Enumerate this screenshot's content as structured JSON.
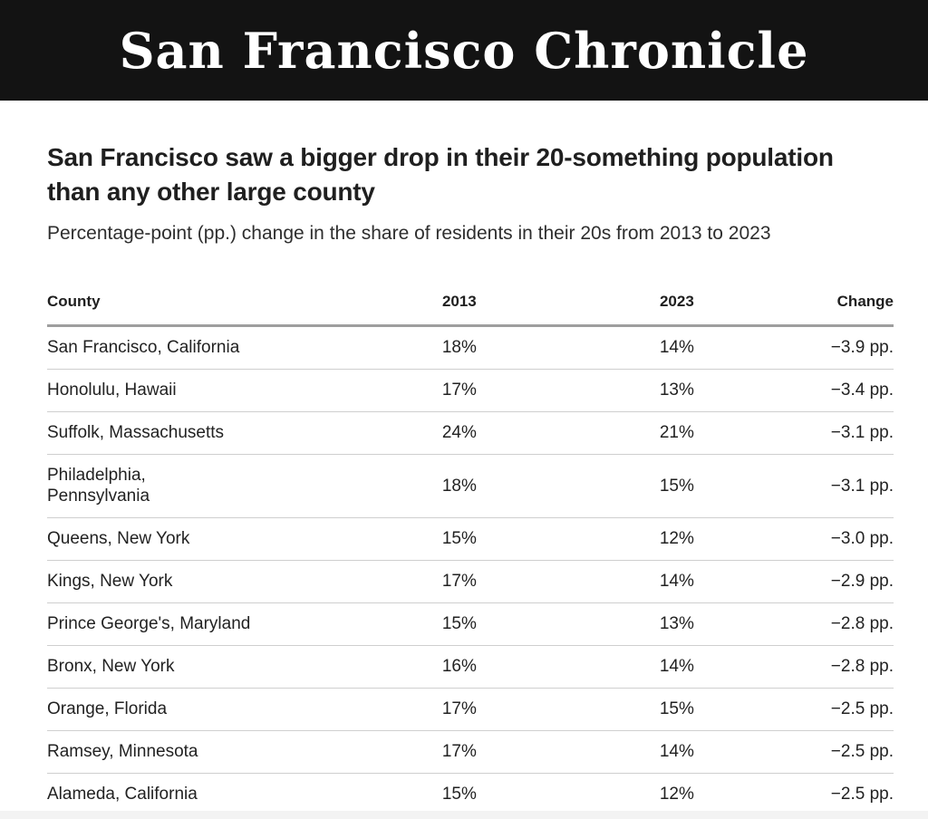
{
  "masthead": {
    "title": "San Francisco Chronicle"
  },
  "headline": "San Francisco saw a bigger drop in their 20-something population than any other large county",
  "subtitle": "Percentage-point (pp.) change in the share of residents in their 20s from 2013 to 2023",
  "table": {
    "columns": {
      "county": "County",
      "y2013": "2013",
      "y2023": "2023",
      "change": "Change"
    },
    "rows": [
      {
        "county": "San Francisco, California",
        "y2013": "18%",
        "y2023": "14%",
        "change": "−3.9 pp."
      },
      {
        "county": "Honolulu, Hawaii",
        "y2013": "17%",
        "y2023": "13%",
        "change": "−3.4 pp."
      },
      {
        "county": "Suffolk, Massachusetts",
        "y2013": "24%",
        "y2023": "21%",
        "change": "−3.1 pp."
      },
      {
        "county": "Philadelphia,\nPennsylvania",
        "y2013": "18%",
        "y2023": "15%",
        "change": "−3.1 pp."
      },
      {
        "county": "Queens, New York",
        "y2013": "15%",
        "y2023": "12%",
        "change": "−3.0 pp."
      },
      {
        "county": "Kings, New York",
        "y2013": "17%",
        "y2023": "14%",
        "change": "−2.9 pp."
      },
      {
        "county": "Prince George's, Maryland",
        "y2013": "15%",
        "y2023": "13%",
        "change": "−2.8 pp."
      },
      {
        "county": "Bronx, New York",
        "y2013": "16%",
        "y2023": "14%",
        "change": "−2.8 pp."
      },
      {
        "county": "Orange, Florida",
        "y2013": "17%",
        "y2023": "15%",
        "change": "−2.5 pp."
      },
      {
        "county": "Ramsey, Minnesota",
        "y2013": "17%",
        "y2023": "14%",
        "change": "−2.5 pp."
      },
      {
        "county": "Alameda, California",
        "y2013": "15%",
        "y2023": "12%",
        "change": "−2.5 pp."
      }
    ]
  },
  "colors": {
    "masthead_bg": "#131313",
    "masthead_fg": "#ffffff",
    "headline_text": "#1f1f1f",
    "body_text": "#222222",
    "rule_heavy": "#9e9e9e",
    "rule_light": "#cfcfcf",
    "bottom_band": "#f3f3f3"
  },
  "chart_data": {
    "type": "table",
    "title": "San Francisco saw a bigger drop in their 20-something population than any other large county",
    "subtitle": "Percentage-point (pp.) change in the share of residents in their 20s from 2013 to 2023",
    "columns": [
      "County",
      "2013",
      "2023",
      "Change"
    ],
    "categories": [
      "San Francisco, California",
      "Honolulu, Hawaii",
      "Suffolk, Massachusetts",
      "Philadelphia, Pennsylvania",
      "Queens, New York",
      "Kings, New York",
      "Prince George's, Maryland",
      "Bronx, New York",
      "Orange, Florida",
      "Ramsey, Minnesota",
      "Alameda, California"
    ],
    "series": [
      {
        "name": "2013",
        "unit": "%",
        "values": [
          18,
          17,
          24,
          18,
          15,
          17,
          15,
          16,
          17,
          17,
          15
        ]
      },
      {
        "name": "2023",
        "unit": "%",
        "values": [
          14,
          13,
          21,
          15,
          12,
          14,
          13,
          14,
          15,
          14,
          12
        ]
      },
      {
        "name": "Change",
        "unit": "pp.",
        "values": [
          -3.9,
          -3.4,
          -3.1,
          -3.1,
          -3.0,
          -2.9,
          -2.8,
          -2.8,
          -2.5,
          -2.5,
          -2.5
        ]
      }
    ],
    "source_brand": "San Francisco Chronicle"
  }
}
